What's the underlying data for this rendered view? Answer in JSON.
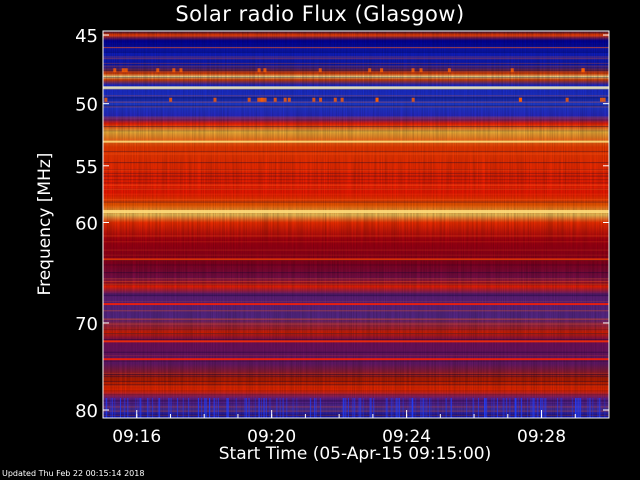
{
  "chart_data": {
    "type": "heatmap",
    "title": "Solar radio Flux (Glasgow)",
    "ylabel": "Frequency [MHz]",
    "xlabel": "Start Time (05-Apr-15 09:15:00)",
    "y_ticks": [
      45,
      50,
      55,
      60,
      70,
      80
    ],
    "x_ticks": [
      "09:16",
      "09:20",
      "09:24",
      "09:28"
    ],
    "y_range": [
      45,
      80
    ],
    "x_range": [
      "09:15:00",
      "09:30:00"
    ],
    "colormap": [
      "#000060",
      "#1010d0",
      "#5030a0",
      "#a00010",
      "#ff2000",
      "#ff8000",
      "#ffe060"
    ]
  },
  "footer": "Updated Thu Feb 22 00:15:14 2018"
}
